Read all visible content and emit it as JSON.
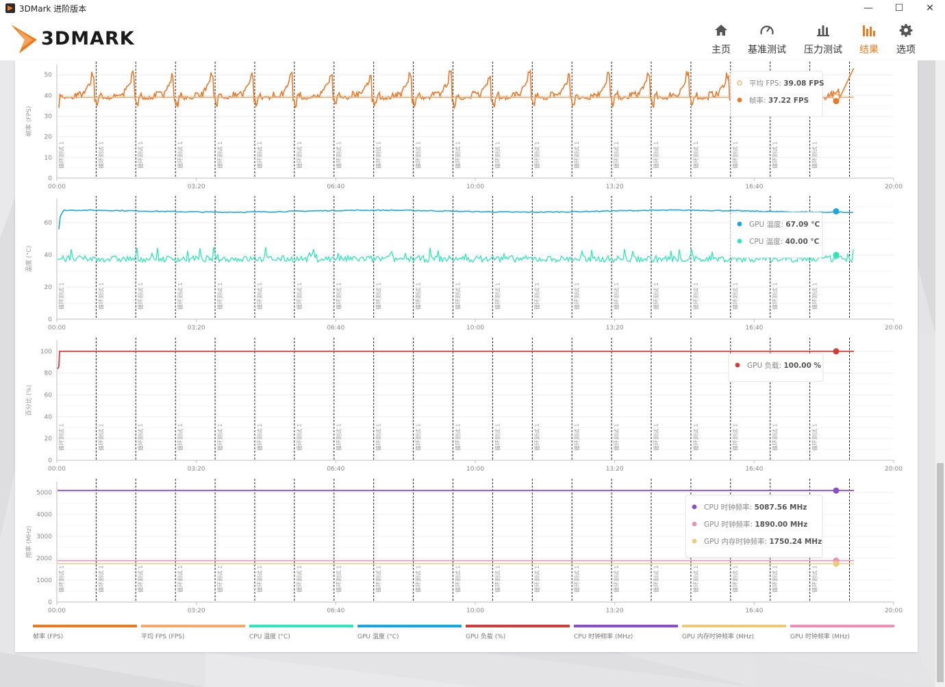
{
  "window": {
    "title": "3DMark 进阶版本",
    "minimize_glyph": "—",
    "maximize_glyph": "☐",
    "close_glyph": "✕"
  },
  "brand": {
    "logo_text": "3DMARK"
  },
  "nav": [
    {
      "label": "主页",
      "icon": "home-icon"
    },
    {
      "label": "基准测试",
      "icon": "gauge-icon"
    },
    {
      "label": "压力测试",
      "icon": "stress-bars-icon"
    },
    {
      "label": "结果",
      "icon": "results-bars-icon",
      "active": true
    },
    {
      "label": "选项",
      "icon": "gear-icon"
    }
  ],
  "colors": {
    "accent": "#ec7a1c",
    "fps": "#e8792a",
    "avg_fps": "#f5a867",
    "cpu_temp": "#2ee6b8",
    "gpu_temp": "#1aa7e0",
    "gpu_load": "#d63a3a",
    "cpu_clock": "#8a4fc8",
    "gpu_mem_clock": "#efc97a",
    "gpu_clock": "#ee8fb4"
  },
  "x_ticks": [
    "00:00",
    "03:20",
    "06:40",
    "10:00",
    "13:20",
    "16:40",
    "20:00"
  ],
  "loop_marker_label": "循环测试 1",
  "loop_count": 20,
  "chart_data": [
    {
      "type": "line",
      "ylabel": "帧率 (FPS)",
      "y_ticks": [
        "0",
        "10",
        "20",
        "30",
        "40",
        "50"
      ],
      "ylim": [
        0,
        55
      ],
      "xlim_seconds": [
        0,
        1200
      ],
      "series": [
        {
          "name": "帧率",
          "values_note": "oscillating between ~33 and ~52 FPS each loop",
          "color": "#e8792a"
        },
        {
          "name": "平均 FPS",
          "values": [
            39.08
          ],
          "color": "#f5a867"
        }
      ],
      "tooltip": [
        {
          "label": "平均 FPS",
          "value": "39.08 FPS",
          "color": "#f5a867",
          "hollow": true
        },
        {
          "label": "帧率",
          "value": "37.22 FPS",
          "color": "#e8792a"
        }
      ]
    },
    {
      "type": "line",
      "ylabel": "温度 (°C)",
      "y_ticks": [
        "0",
        "20",
        "40",
        "60"
      ],
      "ylim": [
        0,
        75
      ],
      "xlim_seconds": [
        0,
        1200
      ],
      "series": [
        {
          "name": "GPU 温度",
          "approx_steady_value": 67.5,
          "color": "#1aa7e0"
        },
        {
          "name": "CPU 温度",
          "approx_steady_value": 38,
          "color": "#2ee6b8"
        }
      ],
      "tooltip": [
        {
          "label": "GPU 温度",
          "value": "67.09 °C",
          "color": "#1aa7e0"
        },
        {
          "label": "CPU 温度",
          "value": "40.00 °C",
          "color": "#2ee6b8"
        }
      ]
    },
    {
      "type": "line",
      "ylabel": "百分比 (%)",
      "y_ticks": [
        "0",
        "20",
        "40",
        "60",
        "80",
        "100"
      ],
      "ylim": [
        0,
        110
      ],
      "xlim_seconds": [
        0,
        1200
      ],
      "series": [
        {
          "name": "GPU 负载",
          "approx_steady_value": 100,
          "color": "#d63a3a"
        }
      ],
      "tooltip": [
        {
          "label": "GPU 负载",
          "value": "100.00 %",
          "color": "#d63a3a"
        }
      ]
    },
    {
      "type": "line",
      "ylabel": "频率 (MHz)",
      "y_ticks": [
        "0",
        "1000",
        "2000",
        "3000",
        "4000",
        "5000"
      ],
      "ylim": [
        0,
        5500
      ],
      "xlim_seconds": [
        0,
        1200
      ],
      "series": [
        {
          "name": "CPU 时钟频率",
          "approx_steady_value": 5087.56,
          "color": "#8a4fc8"
        },
        {
          "name": "GPU 时钟频率",
          "approx_steady_value": 1890,
          "color": "#ee8fb4"
        },
        {
          "name": "GPU 内存时钟频率",
          "approx_steady_value": 1750.24,
          "color": "#efc97a"
        }
      ],
      "tooltip": [
        {
          "label": "CPU 时钟频率",
          "value": "5087.56 MHz",
          "color": "#8a4fc8"
        },
        {
          "label": "GPU 时钟频率",
          "value": "1890.00 MHz",
          "color": "#ee8fb4"
        },
        {
          "label": "GPU 内存时钟频率",
          "value": "1750.24 MHz",
          "color": "#efc97a"
        }
      ]
    }
  ],
  "legend": [
    {
      "label": "帧率 (FPS)",
      "color": "#e8792a"
    },
    {
      "label": "平均 FPS (FPS)",
      "color": "#f5a867"
    },
    {
      "label": "CPU 温度 (°C)",
      "color": "#2ee6b8"
    },
    {
      "label": "GPU 温度 (°C)",
      "color": "#1aa7e0"
    },
    {
      "label": "GPU 负载 (%)",
      "color": "#d63a3a"
    },
    {
      "label": "CPU 时钟频率 (MHz)",
      "color": "#8a4fc8"
    },
    {
      "label": "GPU 内存时钟频率 (MHz)",
      "color": "#efc97a"
    },
    {
      "label": "GPU 时钟频率 (MHz)",
      "color": "#ee8fb4"
    }
  ]
}
